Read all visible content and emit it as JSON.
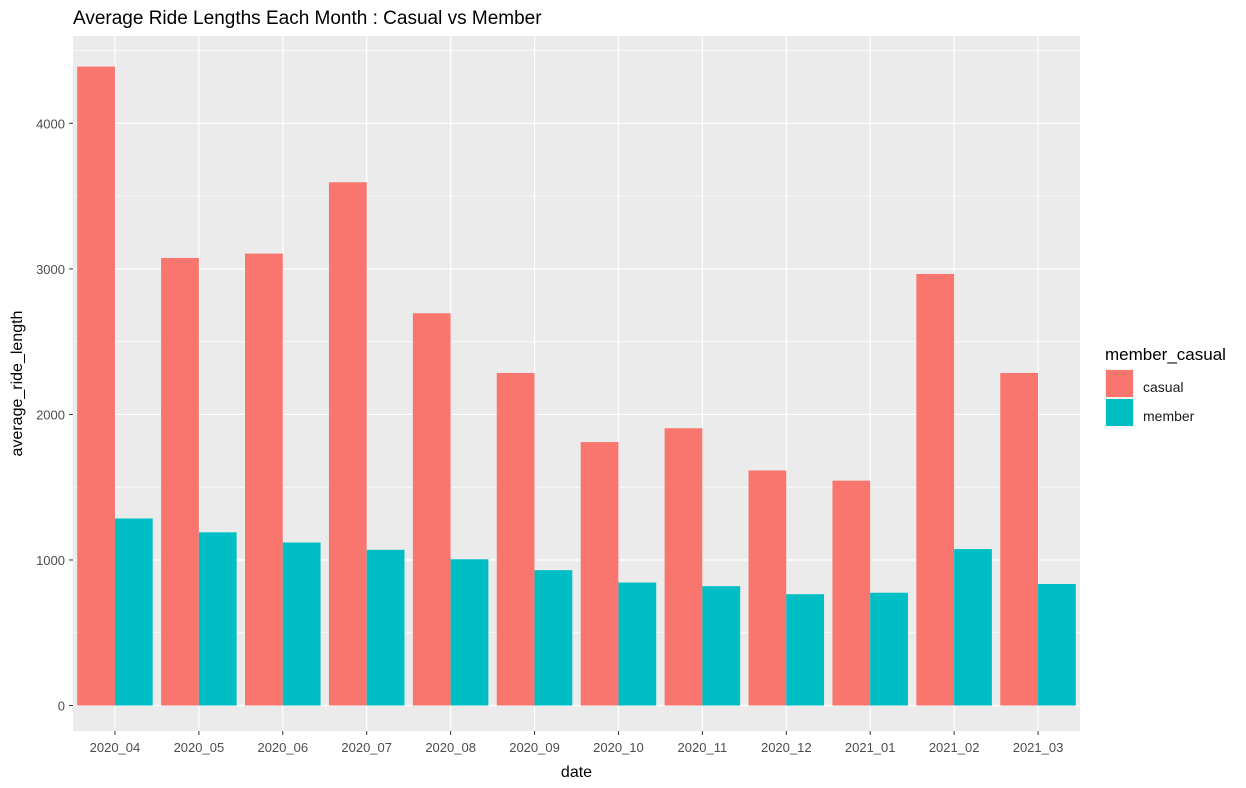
{
  "chart_data": {
    "type": "bar",
    "title": "Average Ride Lengths Each Month : Casual vs Member",
    "xlabel": "date",
    "ylabel": "average_ride_length",
    "categories": [
      "2020_04",
      "2020_05",
      "2020_06",
      "2020_07",
      "2020_08",
      "2020_09",
      "2020_10",
      "2020_11",
      "2020_12",
      "2021_01",
      "2021_02",
      "2021_03"
    ],
    "series": [
      {
        "name": "casual",
        "color": "#F8766D",
        "values": [
          4390,
          3075,
          3105,
          3595,
          2695,
          2285,
          1810,
          1905,
          1615,
          1545,
          2965,
          2285
        ]
      },
      {
        "name": "member",
        "color": "#00BFC4",
        "values": [
          1285,
          1190,
          1120,
          1070,
          1005,
          930,
          845,
          820,
          765,
          775,
          1075,
          835
        ]
      }
    ],
    "ylim": [
      -175,
      4600
    ],
    "yticks": [
      0,
      1000,
      2000,
      3000,
      4000
    ],
    "grid": true,
    "legend": {
      "title": "member_casual",
      "placement": "right"
    }
  }
}
